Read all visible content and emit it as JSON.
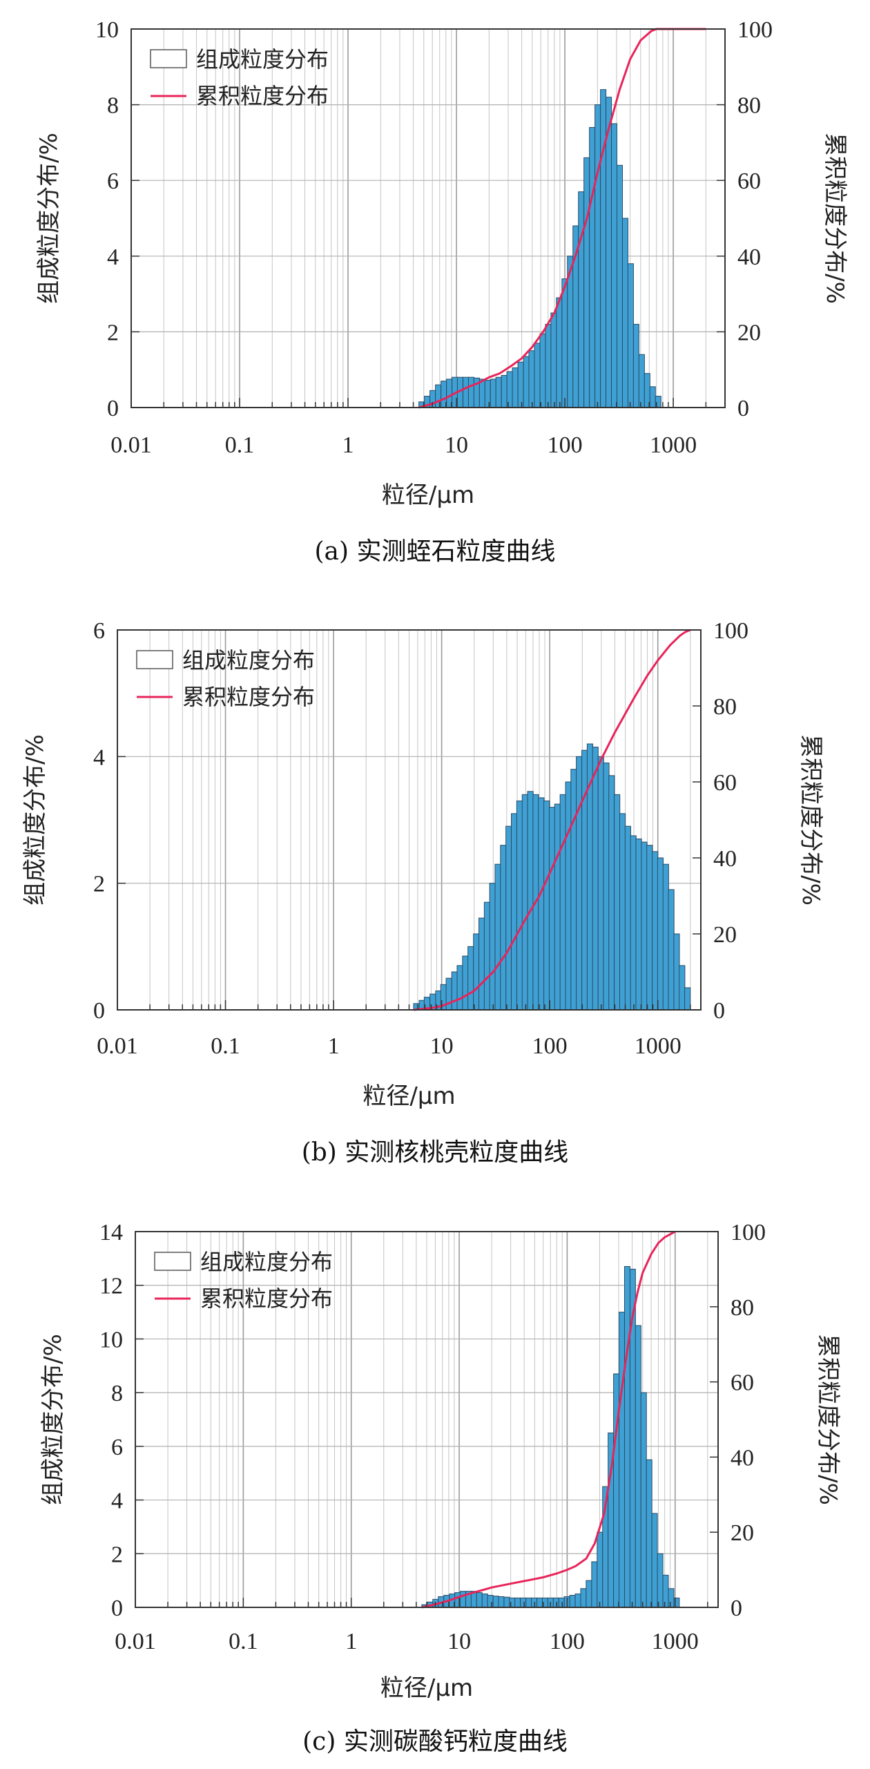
{
  "chart_data": [
    {
      "type": "bar",
      "caption": "(a) 实测蛭石粒度曲线",
      "xlabel": "粒径/μm",
      "ylabel": "组成粒度分布/%",
      "y2label": "累积粒度分布/%",
      "xscale": "log",
      "xlim": [
        0.01,
        3000
      ],
      "ylim": [
        0,
        10
      ],
      "y2lim": [
        0,
        100
      ],
      "xticks": [
        "0.01",
        "0.1",
        "1",
        "10",
        "100",
        "1000"
      ],
      "yticks": [
        "0",
        "2",
        "4",
        "6",
        "8",
        "10"
      ],
      "y2ticks": [
        "0",
        "20",
        "40",
        "60",
        "80",
        "100"
      ],
      "legend": [
        "组成粒度分布",
        "累积粒度分布"
      ],
      "legend_position": "top-left",
      "grid": true,
      "bar_color": "#3fa0d4",
      "line_color": "#e8245a",
      "bins": {
        "x": [
          4.5,
          5.06,
          5.69,
          6.4,
          7.2,
          8.1,
          9.1,
          10.2,
          11.5,
          12.9,
          14.5,
          16.3,
          18.3,
          20.6,
          23.1,
          26,
          29.2,
          32.8,
          36.9,
          41.5,
          46.6,
          52.4,
          58.9,
          66.2,
          74.4,
          83.6,
          94,
          105.6,
          118.7,
          133.4,
          149.9,
          168.5,
          189.4,
          212.9,
          239.3,
          268.9,
          302.2,
          339.7,
          381.8,
          429.1,
          482.3,
          542,
          609,
          685
        ],
        "values": [
          0.15,
          0.3,
          0.45,
          0.6,
          0.7,
          0.75,
          0.8,
          0.8,
          0.8,
          0.8,
          0.78,
          0.75,
          0.72,
          0.75,
          0.8,
          0.85,
          0.95,
          1.05,
          1.2,
          1.35,
          1.5,
          1.7,
          1.95,
          2.2,
          2.5,
          2.9,
          3.4,
          4.0,
          4.8,
          5.7,
          6.6,
          7.4,
          8.0,
          8.4,
          8.2,
          7.5,
          6.4,
          5.0,
          3.8,
          2.2,
          1.4,
          0.9,
          0.55,
          0.3
        ]
      },
      "cumulative": {
        "x": [
          4.5,
          6,
          8,
          10,
          13,
          16,
          20,
          25,
          32,
          40,
          50,
          63,
          80,
          100,
          125,
          160,
          200,
          250,
          320,
          400,
          500,
          630,
          700,
          1000,
          2000
        ],
        "y": [
          0,
          1,
          2.5,
          4,
          5.5,
          6.5,
          8,
          9,
          11,
          13,
          16,
          20,
          25,
          32,
          40,
          50,
          62,
          73,
          84,
          92,
          97,
          99.5,
          100,
          100,
          100
        ]
      }
    },
    {
      "type": "bar",
      "caption": "(b) 实测核桃壳粒度曲线",
      "xlabel": "粒径/μm",
      "ylabel": "组成粒度分布/%",
      "y2label": "累积粒度分布/%",
      "xscale": "log",
      "xlim": [
        0.01,
        2500
      ],
      "ylim": [
        0,
        6
      ],
      "y2lim": [
        0,
        100
      ],
      "xticks": [
        "0.01",
        "0.1",
        "1",
        "10",
        "100",
        "1000"
      ],
      "yticks": [
        "0",
        "2",
        "4",
        "6"
      ],
      "y2ticks": [
        "0",
        "20",
        "40",
        "60",
        "80",
        "100"
      ],
      "legend": [
        "组成粒度分布",
        "累积粒度分布"
      ],
      "legend_position": "top-left",
      "grid": true,
      "bar_color": "#3fa0d4",
      "line_color": "#e8245a",
      "bins": {
        "x": [
          5.5,
          6.2,
          6.9,
          7.8,
          8.8,
          9.8,
          11,
          12.4,
          13.9,
          15.6,
          17.5,
          19.7,
          22.1,
          24.8,
          27.8,
          31.2,
          35,
          39.3,
          44.1,
          49.5,
          55.6,
          62.4,
          70,
          78.6,
          88.2,
          99,
          111,
          124.7,
          140,
          157,
          176,
          198,
          222,
          249,
          280,
          314,
          352,
          395,
          444,
          498,
          559,
          627,
          704,
          790,
          887,
          995,
          1117,
          1253,
          1406,
          1578,
          1771
        ],
        "values": [
          0.1,
          0.15,
          0.2,
          0.25,
          0.3,
          0.4,
          0.5,
          0.6,
          0.7,
          0.85,
          1.0,
          1.2,
          1.45,
          1.7,
          2.0,
          2.3,
          2.6,
          2.9,
          3.1,
          3.3,
          3.4,
          3.45,
          3.4,
          3.35,
          3.3,
          3.2,
          3.25,
          3.4,
          3.6,
          3.8,
          4.0,
          4.1,
          4.2,
          4.15,
          4.0,
          3.9,
          3.7,
          3.4,
          3.1,
          2.9,
          2.75,
          2.7,
          2.65,
          2.6,
          2.5,
          2.4,
          2.3,
          1.9,
          1.2,
          0.7,
          0.35
        ]
      },
      "cumulative": {
        "x": [
          5.5,
          8,
          10,
          15,
          20,
          30,
          40,
          60,
          80,
          100,
          150,
          200,
          300,
          400,
          600,
          800,
          1000,
          1300,
          1600,
          1800,
          2000
        ],
        "y": [
          0,
          0.5,
          1,
          3,
          5,
          10,
          15,
          24,
          30,
          36,
          47,
          55,
          66,
          73,
          82,
          88,
          92,
          96,
          98.5,
          99.5,
          100
        ]
      }
    },
    {
      "type": "bar",
      "caption": "(c) 实测碳酸钙粒度曲线",
      "xlabel": "粒径/μm",
      "ylabel": "组成粒度分布/%",
      "y2label": "累积粒度分布/%",
      "xscale": "log",
      "xlim": [
        0.01,
        2500
      ],
      "ylim": [
        0,
        14
      ],
      "y2lim": [
        0,
        100
      ],
      "xticks": [
        "0.01",
        "0.1",
        "1",
        "10",
        "100",
        "1000"
      ],
      "yticks": [
        "0",
        "2",
        "4",
        "6",
        "8",
        "10",
        "12",
        "14"
      ],
      "y2ticks": [
        "0",
        "20",
        "40",
        "60",
        "80",
        "100"
      ],
      "legend": [
        "组成粒度分布",
        "累积粒度分布"
      ],
      "legend_position": "top-left",
      "grid": true,
      "bar_color": "#3fa0d4",
      "line_color": "#e8245a",
      "bins": {
        "x": [
          4.5,
          5.06,
          5.69,
          6.4,
          7.2,
          8.1,
          9.1,
          10.2,
          11.5,
          12.9,
          14.5,
          16.3,
          18.3,
          20.6,
          23.1,
          26,
          29.2,
          32.8,
          36.9,
          41.5,
          46.6,
          52.4,
          58.9,
          66.2,
          74.4,
          83.6,
          94,
          105.6,
          118.7,
          133.4,
          149.9,
          168.5,
          189.4,
          212.9,
          239.3,
          268.9,
          302.2,
          339.7,
          381.8,
          429.1,
          482.3,
          542,
          609,
          685,
          770,
          866,
          973
        ],
        "values": [
          0.1,
          0.2,
          0.3,
          0.4,
          0.45,
          0.5,
          0.55,
          0.6,
          0.6,
          0.6,
          0.55,
          0.5,
          0.45,
          0.42,
          0.4,
          0.38,
          0.35,
          0.35,
          0.35,
          0.35,
          0.35,
          0.35,
          0.35,
          0.35,
          0.35,
          0.35,
          0.4,
          0.45,
          0.5,
          0.7,
          1.0,
          1.7,
          2.8,
          4.5,
          6.5,
          8.7,
          11.0,
          12.7,
          12.6,
          10.5,
          8.0,
          5.5,
          3.5,
          2.0,
          1.2,
          0.7,
          0.35
        ]
      },
      "cumulative": {
        "x": [
          4.5,
          6,
          8,
          10,
          13,
          16,
          20,
          30,
          40,
          60,
          80,
          100,
          120,
          150,
          180,
          220,
          260,
          300,
          350,
          400,
          450,
          500,
          600,
          700,
          800,
          1000
        ],
        "y": [
          0,
          0.8,
          1.8,
          2.8,
          3.8,
          4.5,
          5.3,
          6.3,
          7,
          8,
          9,
          10,
          11,
          13,
          17,
          25,
          38,
          52,
          66,
          77,
          84,
          89,
          94,
          97,
          98.5,
          100
        ]
      }
    }
  ]
}
